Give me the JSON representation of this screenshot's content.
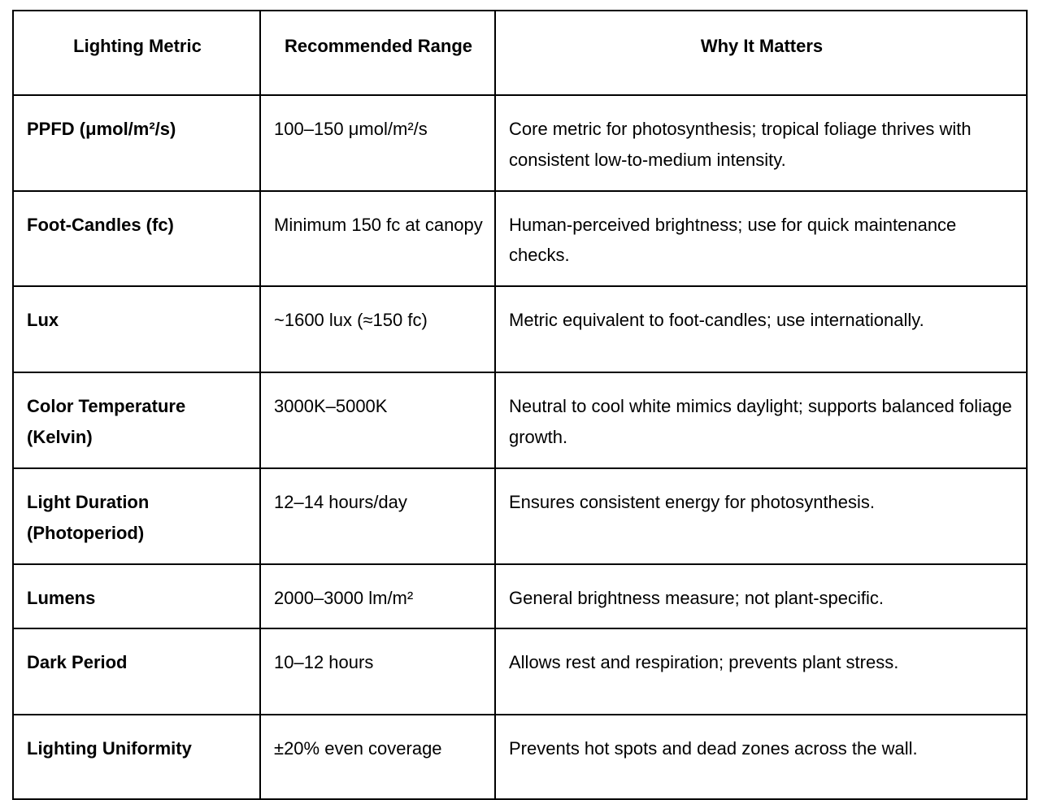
{
  "table": {
    "columns": {
      "metric": "Lighting Metric",
      "range": "Recommended Range",
      "why": "Why It Matters"
    },
    "rows": [
      {
        "metric": "PPFD (μmol/m²/s)",
        "range": "100–150 μmol/m²/s",
        "why": "Core metric for photosynthesis; tropical foliage thrives with consistent low-to-medium intensity."
      },
      {
        "metric": "Foot-Candles (fc)",
        "range": "Minimum 150 fc at canopy",
        "why": "Human-perceived brightness; use for quick maintenance checks."
      },
      {
        "metric": "Lux",
        "range": "~1600 lux (≈150 fc)",
        "why": "Metric equivalent to foot-candles; use internationally."
      },
      {
        "metric": "Color Temperature (Kelvin)",
        "range": "3000K–5000K",
        "why": "Neutral to cool white mimics daylight; supports balanced foliage growth."
      },
      {
        "metric": "Light Duration (Photoperiod)",
        "range": "12–14 hours/day",
        "why": "Ensures consistent energy for photosynthesis."
      },
      {
        "metric": "Lumens",
        "range": "2000–3000 lm/m²",
        "why": "General brightness measure; not plant-specific."
      },
      {
        "metric": "Dark Period",
        "range": "10–12 hours",
        "why": "Allows rest and respiration; prevents plant stress."
      },
      {
        "metric": "Lighting Uniformity",
        "range": "±20% even coverage",
        "why": "Prevents hot spots and dead zones across the wall."
      }
    ]
  },
  "colors": {
    "border": "#000000",
    "text": "#000000",
    "background": "#ffffff"
  }
}
